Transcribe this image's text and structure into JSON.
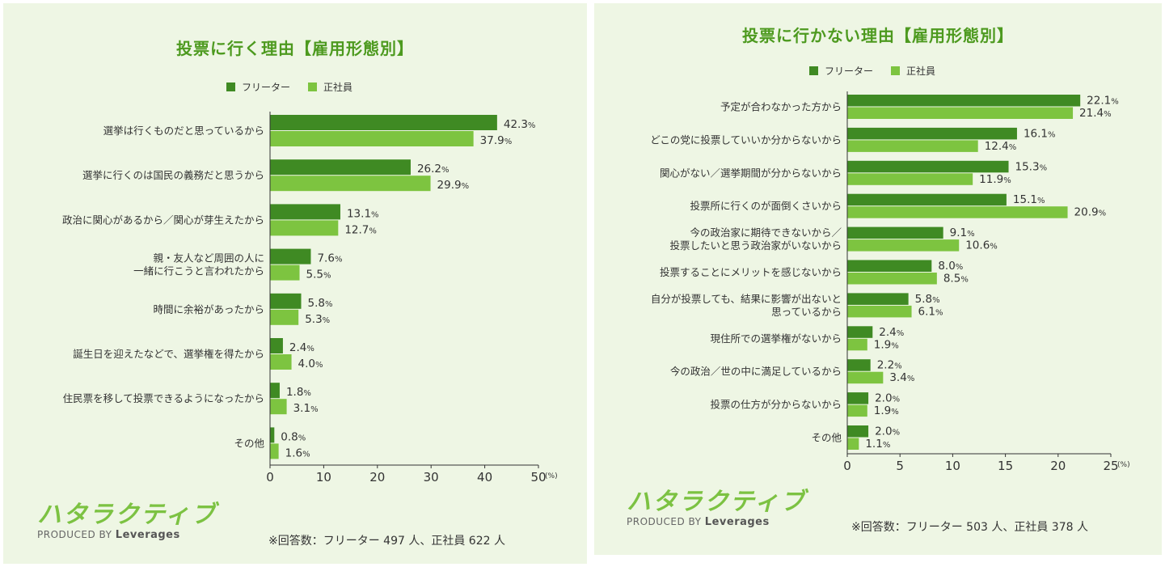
{
  "colors": {
    "freeter": "#3f8a23",
    "seishain": "#7dc440",
    "title": "#4d9a1f",
    "panel_bg": "#eef6e4"
  },
  "left": {
    "title": "投票に行く理由【雇用形態別】",
    "legend": [
      "フリーター",
      "正社員"
    ],
    "respondents": "※回答数：フリーター 497 人、正社員 622 人",
    "logo": {
      "brand": "ハタラクティブ",
      "produced_by": "PRODUCED BY",
      "company": "Leverages"
    },
    "chart_data": {
      "type": "bar",
      "orientation": "horizontal",
      "categories": [
        [
          "選挙は行くものだと思っているから"
        ],
        [
          "選挙に行くのは国民の義務だと思うから"
        ],
        [
          "政治に関心があるから／関心が芽生えたから"
        ],
        [
          "親・友人など周囲の人に",
          "一緒に行こうと言われたから"
        ],
        [
          "時間に余裕があったから"
        ],
        [
          "誕生日を迎えたなどで、選挙権を得たから"
        ],
        [
          "住民票を移して投票できるようになったから"
        ],
        [
          "その他"
        ]
      ],
      "series": [
        {
          "name": "フリーター",
          "values": [
            42.3,
            26.2,
            13.1,
            7.6,
            5.8,
            2.4,
            1.8,
            0.8
          ]
        },
        {
          "name": "正社員",
          "values": [
            37.9,
            29.9,
            12.7,
            5.5,
            5.3,
            4.0,
            3.1,
            1.6
          ]
        }
      ],
      "xlim": [
        0,
        50
      ],
      "ticks": [
        0,
        10,
        20,
        30,
        40,
        50
      ],
      "unit": "(%)",
      "value_suffix": "%",
      "grid": false,
      "legend_position": "top"
    }
  },
  "right": {
    "title": "投票に行かない理由【雇用形態別】",
    "legend": [
      "フリーター",
      "正社員"
    ],
    "respondents": "※回答数：フリーター 503 人、正社員 378 人",
    "logo": {
      "brand": "ハタラクティブ",
      "produced_by": "PRODUCED BY",
      "company": "Leverages"
    },
    "chart_data": {
      "type": "bar",
      "orientation": "horizontal",
      "categories": [
        [
          "予定が合わなかった方から"
        ],
        [
          "どこの党に投票していいか分からないから"
        ],
        [
          "関心がない／選挙期間が分からないから"
        ],
        [
          "投票所に行くのが面倒くさいから"
        ],
        [
          "今の政治家に期待できないから／",
          "投票したいと思う政治家がいないから"
        ],
        [
          "投票することにメリットを感じないから"
        ],
        [
          "自分が投票しても、結果に影響が出ないと",
          "思っているから"
        ],
        [
          "現住所での選挙権がないから"
        ],
        [
          "今の政治／世の中に満足しているから"
        ],
        [
          "投票の仕方が分からないから"
        ],
        [
          "その他"
        ]
      ],
      "series": [
        {
          "name": "フリーター",
          "values": [
            22.1,
            16.1,
            15.3,
            15.1,
            9.1,
            8.0,
            5.8,
            2.4,
            2.2,
            2.0,
            2.0
          ]
        },
        {
          "name": "正社員",
          "values": [
            21.4,
            12.4,
            11.9,
            20.9,
            10.6,
            8.5,
            6.1,
            1.9,
            3.4,
            1.9,
            1.1
          ]
        }
      ],
      "xlim": [
        0,
        25
      ],
      "ticks": [
        0,
        5,
        10,
        15,
        20,
        25
      ],
      "unit": "(%)",
      "value_suffix": "%",
      "grid": false,
      "legend_position": "top"
    }
  }
}
